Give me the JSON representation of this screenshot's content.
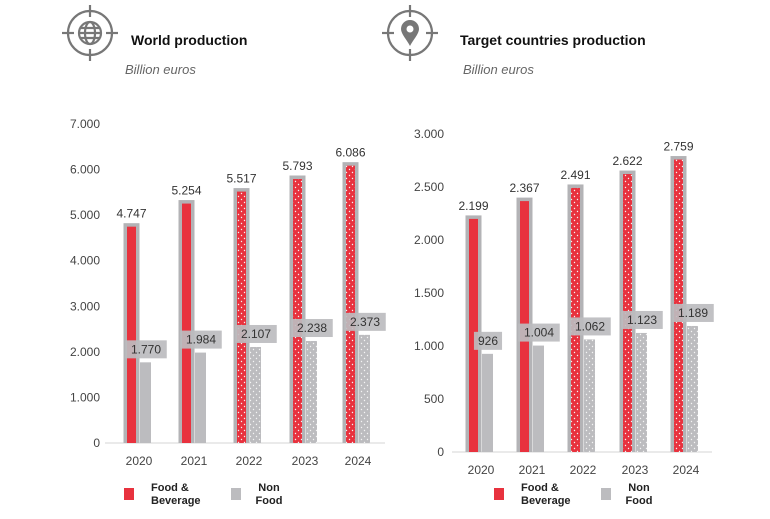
{
  "colors": {
    "food": "#e8323e",
    "nonfood": "#bcbcbf",
    "frame": "#b3b3b6",
    "dots": "#f4f4f4"
  },
  "chart_data": [
    {
      "type": "bar",
      "icon": "globe-icon",
      "title": "World production",
      "subtitle": "Billion euros",
      "categories": [
        "2020",
        "2021",
        "2022",
        "2023",
        "2024"
      ],
      "series": [
        {
          "name": "Food & Beverage",
          "values": [
            4747,
            5254,
            5517,
            5793,
            6086
          ],
          "labels": [
            "4.747",
            "5.254",
            "5.517",
            "5.793",
            "6.086"
          ]
        },
        {
          "name": "Non Food",
          "values": [
            1770,
            1984,
            2107,
            2238,
            2373
          ],
          "labels": [
            "1.770",
            "1.984",
            "2.107",
            "2.238",
            "2.373"
          ]
        }
      ],
      "ylim": [
        0,
        7000
      ],
      "yticks": [
        0,
        1000,
        2000,
        3000,
        4000,
        5000,
        6000,
        7000
      ],
      "ytick_labels": [
        "0",
        "1.000",
        "2.000",
        "3.000",
        "4.000",
        "5.000",
        "6.000",
        "7.000"
      ],
      "legend": [
        "Food &\nBeverage",
        "Non\nFood"
      ],
      "legend_position": "bottom"
    },
    {
      "type": "bar",
      "icon": "location-pin-icon",
      "title": "Target countries production",
      "subtitle": "Billion euros",
      "categories": [
        "2020",
        "2021",
        "2022",
        "2023",
        "2024"
      ],
      "series": [
        {
          "name": "Food & Beverage",
          "values": [
            2199,
            2367,
            2491,
            2622,
            2759
          ],
          "labels": [
            "2.199",
            "2.367",
            "2.491",
            "2.622",
            "2.759"
          ]
        },
        {
          "name": "Non Food",
          "values": [
            926,
            1004,
            1062,
            1123,
            1189
          ],
          "labels": [
            "926",
            "1.004",
            "1.062",
            "1.123",
            "1.189"
          ]
        }
      ],
      "ylim": [
        0,
        3000
      ],
      "yticks": [
        0,
        500,
        1000,
        1500,
        2000,
        2500,
        3000
      ],
      "ytick_labels": [
        "0",
        "500",
        "1.000",
        "1.500",
        "2.000",
        "2.500",
        "3.000"
      ],
      "legend": [
        "Food &\nBeverage",
        "Non\nFood"
      ],
      "legend_position": "bottom"
    }
  ]
}
